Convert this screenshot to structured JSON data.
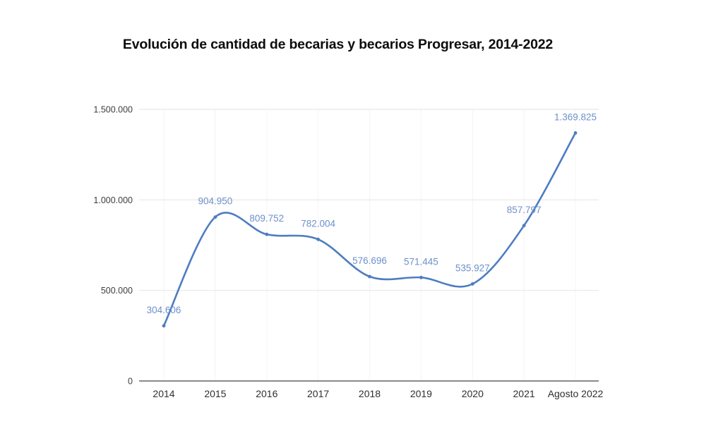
{
  "chart_data": {
    "type": "line",
    "title": "Evolución de cantidad de becarias y becarios Progresar, 2014-2022",
    "categories": [
      "2014",
      "2015",
      "2016",
      "2017",
      "2018",
      "2019",
      "2020",
      "2021",
      "Agosto 2022"
    ],
    "values": [
      304606,
      904950,
      809752,
      782004,
      576696,
      571445,
      535927,
      857797,
      1369825
    ],
    "point_labels": [
      "304.606",
      "904.950",
      "809.752",
      "782.004",
      "576.696",
      "571.445",
      "535.927",
      "857.797",
      "1.369.825"
    ],
    "xlabel": "",
    "ylabel": "",
    "ylim": [
      0,
      1500000
    ],
    "yticks": [
      {
        "value": 0,
        "label": "0"
      },
      {
        "value": 500000,
        "label": "500.000"
      },
      {
        "value": 1000000,
        "label": "1.000.000"
      },
      {
        "value": 1500000,
        "label": "1.500.000"
      }
    ],
    "grid": true,
    "legend": "none",
    "line_style": "smooth",
    "line_color": "#4d7dc1",
    "point_label_color": "#6e90cb",
    "x_tick_color": "#2f2f2f",
    "y_tick_color": "#3d3d3d",
    "axis_line_color": "#8a8a8a",
    "h_gridline_color": "#eae8e5",
    "v_gridline_color": "#f5f4f2",
    "background_color": "#ffffff"
  }
}
